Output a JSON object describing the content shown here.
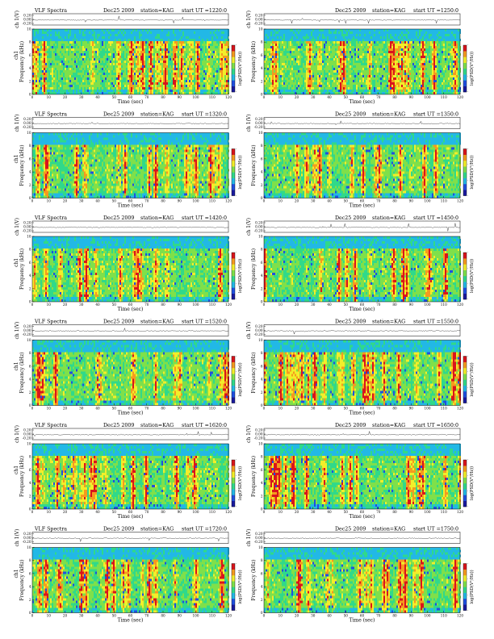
{
  "chart_data": [
    {
      "type": "heatmap",
      "title": "VLF Spectra",
      "date": "Dec25 2009",
      "station": "station=KAG",
      "start_ut": "start  UT =1220:0",
      "top_ylabel": "ch 1(V)",
      "top_yticks": [
        "0.20",
        "0.00",
        "-0.20"
      ],
      "ylabel": "Frequency (kHz)",
      "ch_label": "ch1",
      "yticks": [
        "0",
        "2",
        "4",
        "6",
        "8",
        "10"
      ],
      "xlabel": "Time  (sec)",
      "xticks": [
        "0",
        "10",
        "20",
        "30",
        "40",
        "50",
        "60",
        "70",
        "80",
        "90",
        "100",
        "110",
        "120"
      ],
      "colorbar_label": "log(PSD(V²/Hz))",
      "colorbar_ticks": [
        "-",
        "-",
        "-",
        "-"
      ],
      "xlim": [
        0,
        120
      ],
      "ylim": [
        0,
        10
      ]
    },
    {
      "type": "heatmap",
      "title": "",
      "date": "Dec25 2009",
      "station": "station=KAG",
      "start_ut": "start  UT =1250:0",
      "top_ylabel": "ch 1(V)",
      "top_yticks": [
        "0.20",
        "0.00",
        "-0.20"
      ],
      "ylabel": "Frequency (kHz)",
      "ch_label": "",
      "yticks": [
        "0",
        "2",
        "4",
        "6",
        "8",
        "10"
      ],
      "xlabel": "Time  (sec)",
      "xticks": [
        "0",
        "10",
        "20",
        "30",
        "40",
        "50",
        "60",
        "70",
        "80",
        "90",
        "100",
        "110",
        "120"
      ],
      "colorbar_label": "log(PSD(V²/Hz))",
      "colorbar_ticks": [
        "-",
        "-",
        "-",
        "-"
      ],
      "xlim": [
        0,
        120
      ],
      "ylim": [
        0,
        10
      ]
    },
    {
      "type": "heatmap",
      "title": "VLF Spectra",
      "date": "Dec25 2009",
      "station": "station=KAG",
      "start_ut": "start  UT =1320:0",
      "top_ylabel": "ch 1(V)",
      "top_yticks": [
        "0.20",
        "0.00",
        "-0.20"
      ],
      "ylabel": "Frequency (kHz)",
      "ch_label": "ch1",
      "yticks": [
        "0",
        "2",
        "4",
        "6",
        "8",
        "10"
      ],
      "xlabel": "Time  (sec)",
      "xticks": [
        "0",
        "10",
        "20",
        "30",
        "40",
        "50",
        "60",
        "70",
        "80",
        "90",
        "100",
        "110",
        "120"
      ],
      "colorbar_label": "log(PSD(V²/Hz))",
      "colorbar_ticks": [
        "-",
        "-",
        "-",
        "-"
      ],
      "xlim": [
        0,
        120
      ],
      "ylim": [
        0,
        10
      ]
    },
    {
      "type": "heatmap",
      "title": "",
      "date": "Dec25 2009",
      "station": "station=KAG",
      "start_ut": "start  UT =1350:0",
      "top_ylabel": "ch 1(V)",
      "top_yticks": [
        "0.20",
        "0.00",
        "-0.20"
      ],
      "ylabel": "Frequency (kHz)",
      "ch_label": "",
      "yticks": [
        "0",
        "2",
        "4",
        "6",
        "8",
        "10"
      ],
      "xlabel": "Time  (sec)",
      "xticks": [
        "0",
        "10",
        "20",
        "30",
        "40",
        "50",
        "60",
        "70",
        "80",
        "90",
        "100",
        "110",
        "120"
      ],
      "colorbar_label": "log(PSD(V²/Hz))",
      "colorbar_ticks": [
        "-",
        "-",
        "-",
        "-"
      ],
      "xlim": [
        0,
        120
      ],
      "ylim": [
        0,
        10
      ]
    },
    {
      "type": "heatmap",
      "title": "VLF Spectra",
      "date": "Dec25 2009",
      "station": "station=KAG",
      "start_ut": "start  UT =1420:0",
      "top_ylabel": "ch 1(V)",
      "top_yticks": [
        "0.20",
        "0.00",
        "-0.20"
      ],
      "ylabel": "Frequency (kHz)",
      "ch_label": "ch1",
      "yticks": [
        "0",
        "2",
        "4",
        "6",
        "8",
        "10"
      ],
      "xlabel": "Time  (sec)",
      "xticks": [
        "0",
        "10",
        "20",
        "30",
        "40",
        "50",
        "60",
        "70",
        "80",
        "90",
        "100",
        "110",
        "120"
      ],
      "colorbar_label": "log(PSD(V²/Hz))",
      "colorbar_ticks": [
        "-",
        "-",
        "-",
        "-"
      ],
      "xlim": [
        0,
        120
      ],
      "ylim": [
        0,
        10
      ]
    },
    {
      "type": "heatmap",
      "title": "",
      "date": "Dec25 2009",
      "station": "station=KAG",
      "start_ut": "start  UT =1450:0",
      "top_ylabel": "ch 1(V)",
      "top_yticks": [
        "0.20",
        "0.00",
        "-0.20"
      ],
      "ylabel": "Frequency (kHz)",
      "ch_label": "",
      "yticks": [
        "0",
        "2",
        "4",
        "6",
        "8",
        "10"
      ],
      "xlabel": "Time  (sec)",
      "xticks": [
        "0",
        "10",
        "20",
        "30",
        "40",
        "50",
        "60",
        "70",
        "80",
        "90",
        "100",
        "110",
        "120"
      ],
      "colorbar_label": "log(PSD(V²/Hz))",
      "colorbar_ticks": [
        "-",
        "-",
        "-",
        "-"
      ],
      "xlim": [
        0,
        120
      ],
      "ylim": [
        0,
        10
      ]
    },
    {
      "type": "heatmap",
      "title": "VLF Spectra",
      "date": "Dec25 2009",
      "station": "station=KAG",
      "start_ut": "start  UT =1520:0",
      "top_ylabel": "ch 1(V)",
      "top_yticks": [
        "0.20",
        "0.00",
        "-0.20"
      ],
      "ylabel": "Frequency (kHz)",
      "ch_label": "ch1",
      "yticks": [
        "0",
        "2",
        "4",
        "6",
        "8",
        "10"
      ],
      "xlabel": "Time  (sec)",
      "xticks": [
        "0",
        "10",
        "20",
        "30",
        "40",
        "50",
        "60",
        "70",
        "80",
        "90",
        "100",
        "110",
        "120"
      ],
      "colorbar_label": "log(PSD(V²/Hz))",
      "colorbar_ticks": [
        "-",
        "-",
        "-",
        "-"
      ],
      "xlim": [
        0,
        120
      ],
      "ylim": [
        0,
        10
      ]
    },
    {
      "type": "heatmap",
      "title": "",
      "date": "Dec25 2009",
      "station": "station=KAG",
      "start_ut": "start  UT =1550:0",
      "top_ylabel": "ch 1(V)",
      "top_yticks": [
        "0.20",
        "0.00",
        "-0.20"
      ],
      "ylabel": "Frequency (kHz)",
      "ch_label": "",
      "yticks": [
        "0",
        "2",
        "4",
        "6",
        "8",
        "10"
      ],
      "xlabel": "Time  (sec)",
      "xticks": [
        "0",
        "10",
        "20",
        "30",
        "40",
        "50",
        "60",
        "70",
        "80",
        "90",
        "100",
        "110",
        "120"
      ],
      "colorbar_label": "log(PSD(V²/Hz))",
      "colorbar_ticks": [
        "-",
        "-",
        "-",
        "-"
      ],
      "xlim": [
        0,
        120
      ],
      "ylim": [
        0,
        10
      ]
    },
    {
      "type": "heatmap",
      "title": "VLF Spectra",
      "date": "Dec25 2009",
      "station": "station=KAG",
      "start_ut": "start  UT =1620:0",
      "top_ylabel": "ch 1(V)",
      "top_yticks": [
        "0.20",
        "0.00",
        "-0.20"
      ],
      "ylabel": "Frequency (kHz)",
      "ch_label": "ch1",
      "yticks": [
        "0",
        "2",
        "4",
        "6",
        "8",
        "10"
      ],
      "xlabel": "Time  (sec)",
      "xticks": [
        "0",
        "10",
        "20",
        "30",
        "40",
        "50",
        "60",
        "70",
        "80",
        "90",
        "100",
        "110",
        "120"
      ],
      "colorbar_label": "log(PSD(V²/Hz))",
      "colorbar_ticks": [
        "-",
        "-",
        "-",
        "-"
      ],
      "xlim": [
        0,
        120
      ],
      "ylim": [
        0,
        10
      ]
    },
    {
      "type": "heatmap",
      "title": "",
      "date": "Dec25 2009",
      "station": "station=KAG",
      "start_ut": "start  UT =1650:0",
      "top_ylabel": "ch 1(V)",
      "top_yticks": [
        "0.20",
        "0.00",
        "-0.20"
      ],
      "ylabel": "Frequency (kHz)",
      "ch_label": "",
      "yticks": [
        "0",
        "2",
        "4",
        "6",
        "8",
        "10"
      ],
      "xlabel": "Time  (sec)",
      "xticks": [
        "0",
        "10",
        "20",
        "30",
        "40",
        "50",
        "60",
        "70",
        "80",
        "90",
        "100",
        "110",
        "120"
      ],
      "colorbar_label": "log(PSD(V²/Hz))",
      "colorbar_ticks": [
        "-",
        "-",
        "-",
        "-"
      ],
      "xlim": [
        0,
        120
      ],
      "ylim": [
        0,
        10
      ]
    },
    {
      "type": "heatmap",
      "title": "VLF Spectra",
      "date": "Dec25 2009",
      "station": "station=KAG",
      "start_ut": "start  UT =1720:0",
      "top_ylabel": "ch 1(V)",
      "top_yticks": [
        "0.20",
        "0.00",
        "-0.20"
      ],
      "ylabel": "Frequency (kHz)",
      "ch_label": "ch1",
      "yticks": [
        "0",
        "2",
        "4",
        "6",
        "8",
        "10"
      ],
      "xlabel": "Time  (sec)",
      "xticks": [
        "0",
        "10",
        "20",
        "30",
        "40",
        "50",
        "60",
        "70",
        "80",
        "90",
        "100",
        "110",
        "120"
      ],
      "colorbar_label": "log(PSD(V²/Hz))",
      "colorbar_ticks": [
        "-",
        "-",
        "-",
        "-"
      ],
      "xlim": [
        0,
        120
      ],
      "ylim": [
        0,
        10
      ]
    },
    {
      "type": "heatmap",
      "title": "",
      "date": "Dec25 2009",
      "station": "station=KAG",
      "start_ut": "start  UT =1750:0",
      "top_ylabel": "ch 1(V)",
      "top_yticks": [
        "0.20",
        "0.00",
        "-0.20"
      ],
      "ylabel": "Frequency (kHz)",
      "ch_label": "",
      "yticks": [
        "0",
        "2",
        "4",
        "6",
        "8",
        "10"
      ],
      "xlabel": "Time  (sec)",
      "xticks": [
        "0",
        "10",
        "20",
        "30",
        "40",
        "50",
        "60",
        "70",
        "80",
        "90",
        "100",
        "110",
        "120"
      ],
      "colorbar_label": "log(PSD(V²/Hz))",
      "colorbar_ticks": [
        "-",
        "-",
        "-",
        "-"
      ],
      "xlim": [
        0,
        120
      ],
      "ylim": [
        0,
        10
      ]
    }
  ],
  "colormap": [
    "#1a1a9e",
    "#1f4fe0",
    "#22b8e6",
    "#30d98a",
    "#7fe04a",
    "#f2ee2a",
    "#f59a1f",
    "#d9141c"
  ]
}
